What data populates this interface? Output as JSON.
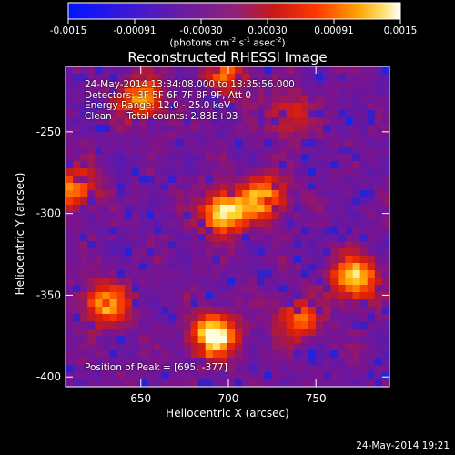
{
  "colorbar": {
    "ticks": [
      "-0.0015",
      "-0.00091",
      "-0.00030",
      "0.00030",
      "0.00091",
      "0.0015"
    ],
    "units_main": "(photons cm",
    "units_exp1": "-2",
    "units_mid": " s",
    "units_exp2": "-1",
    "units_end": " asec",
    "units_exp3": "-2",
    "units_close": ")"
  },
  "chart_data": {
    "type": "heatmap",
    "title": "Reconstructed RHESSI Image",
    "xlabel": "Heliocentric X (arcsec)",
    "ylabel": "Heliocentric Y (arcsec)",
    "xlim": [
      607,
      792
    ],
    "ylim": [
      -406,
      -210
    ],
    "xticks": [
      "650",
      "700",
      "750"
    ],
    "yticks": [
      "-250",
      "-300",
      "-350",
      "-400"
    ],
    "colormap": "blue-purple-red-yellow-white (IDL Rainbow-style)",
    "peak_sources": [
      {
        "x": 692,
        "y": -375,
        "intensity": 1.0
      },
      {
        "x": 697,
        "y": -300,
        "intensity": 0.9
      },
      {
        "x": 720,
        "y": -290,
        "intensity": 0.75
      },
      {
        "x": 772,
        "y": -340,
        "intensity": 0.85
      },
      {
        "x": 740,
        "y": -365,
        "intensity": 0.55
      },
      {
        "x": 630,
        "y": -355,
        "intensity": 0.7
      },
      {
        "x": 650,
        "y": -230,
        "intensity": 0.7
      },
      {
        "x": 612,
        "y": -285,
        "intensity": 0.6
      },
      {
        "x": 700,
        "y": -215,
        "intensity": 0.5
      },
      {
        "x": 735,
        "y": -240,
        "intensity": 0.4
      }
    ]
  },
  "annotation": {
    "time_line": "24-May-2014 13:34:08.000 to 13:35:56.000",
    "detectors_line": "Detectors: 3F 5F 6F 7F 8F 9F, Att 0",
    "energy_line": "Energy Range: 12.0 - 25.0 keV",
    "clean_line": "Clean     Total counts: 2.83E+03",
    "peak_line": "Position of Peak = [695, -377]"
  },
  "footer": {
    "timestamp": "24-May-2014 19:21"
  }
}
